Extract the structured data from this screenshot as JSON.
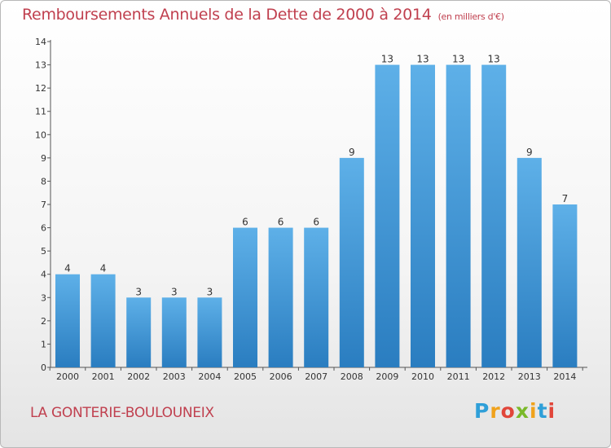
{
  "header": {
    "title": "Remboursements Annuels de la Dette de 2000 à 2014",
    "unit": "(en milliers d'€)"
  },
  "footer": {
    "commune": "LA GONTERIE-BOULOUNEIX",
    "brand_letters": [
      "P",
      "r",
      "o",
      "x",
      "i",
      "t",
      "i"
    ],
    "brand_colors": [
      "#2f9fd8",
      "#f0a21c",
      "#e1463a",
      "#7ab929",
      "#f0a21c",
      "#2f9fd8",
      "#e1463a"
    ]
  },
  "chart_data": {
    "type": "bar",
    "title": "Remboursements Annuels de la Dette de 2000 à 2014",
    "xlabel": "",
    "ylabel": "",
    "categories": [
      "2000",
      "2001",
      "2002",
      "2003",
      "2004",
      "2005",
      "2006",
      "2007",
      "2008",
      "2009",
      "2010",
      "2011",
      "2012",
      "2013",
      "2014"
    ],
    "values": [
      4,
      4,
      3,
      3,
      3,
      6,
      6,
      6,
      9,
      13,
      13,
      13,
      13,
      9,
      7
    ],
    "data_labels": [
      "4",
      "4",
      "3",
      "3",
      "3",
      "6",
      "6",
      "6",
      "9",
      "13",
      "13",
      "13",
      "13",
      "9",
      "7"
    ],
    "ylim": [
      0,
      14
    ],
    "yticks": [
      0,
      1,
      2,
      3,
      4,
      5,
      6,
      7,
      8,
      9,
      10,
      11,
      12,
      13,
      14
    ],
    "grid": false,
    "bar_color_top": "#5eb0e8",
    "bar_color_bottom": "#2a7dc0"
  }
}
